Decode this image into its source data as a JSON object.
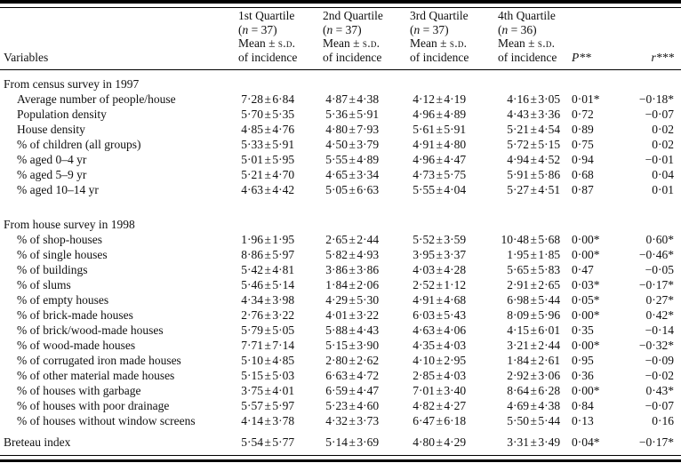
{
  "table": {
    "variables_header": "Variables",
    "plus_minus": "±",
    "mean_label": "Mean ± s.d.",
    "incidence_label": "of incidence",
    "p_header": "P**",
    "r_header": "r***",
    "quartile_columns": [
      {
        "title": "1st Quartile",
        "n": "(n = 37)"
      },
      {
        "title": "2nd Quartile",
        "n": "(n = 37)"
      },
      {
        "title": "3rd Quartile",
        "n": "(n = 37)"
      },
      {
        "title": "4th Quartile",
        "n": "(n = 36)"
      }
    ],
    "sections": [
      {
        "title": "From census survey in 1997",
        "rows": [
          {
            "label": "Average number of people/house",
            "values": [
              [
                "7·28",
                "6·84"
              ],
              [
                "4·87",
                "4·38"
              ],
              [
                "4·12",
                "4·19"
              ],
              [
                "4·16",
                "3·05"
              ]
            ],
            "p": "0·01*",
            "r": "−0·18*"
          },
          {
            "label": "Population density",
            "values": [
              [
                "5·70",
                "5·35"
              ],
              [
                "5·36",
                "5·91"
              ],
              [
                "4·96",
                "4·89"
              ],
              [
                "4·43",
                "3·36"
              ]
            ],
            "p": "0·72",
            "r": "−0·07"
          },
          {
            "label": "House density",
            "values": [
              [
                "4·85",
                "4·76"
              ],
              [
                "4·80",
                "7·93"
              ],
              [
                "5·61",
                "5·91"
              ],
              [
                "5·21",
                "4·54"
              ]
            ],
            "p": "0·89",
            "r": "0·02"
          },
          {
            "label": "% of children (all groups)",
            "values": [
              [
                "5·33",
                "5·91"
              ],
              [
                "4·50",
                "3·79"
              ],
              [
                "4·91",
                "4·80"
              ],
              [
                "5·72",
                "5·15"
              ]
            ],
            "p": "0·75",
            "r": "0·02"
          },
          {
            "label": "% aged 0–4 yr",
            "values": [
              [
                "5·01",
                "5·95"
              ],
              [
                "5·55",
                "4·89"
              ],
              [
                "4·96",
                "4·47"
              ],
              [
                "4·94",
                "4·52"
              ]
            ],
            "p": "0·94",
            "r": "−0·01"
          },
          {
            "label": "% aged 5–9 yr",
            "values": [
              [
                "5·21",
                "4·70"
              ],
              [
                "4·65",
                "3·34"
              ],
              [
                "4·73",
                "5·75"
              ],
              [
                "5·91",
                "5·86"
              ]
            ],
            "p": "0·68",
            "r": "0·04"
          },
          {
            "label": "% aged 10–14 yr",
            "values": [
              [
                "4·63",
                "4·42"
              ],
              [
                "5·05",
                "6·63"
              ],
              [
                "5·55",
                "4·04"
              ],
              [
                "5·27",
                "4·51"
              ]
            ],
            "p": "0·87",
            "r": "0·01"
          }
        ]
      },
      {
        "title": "From house survey in 1998",
        "rows": [
          {
            "label": "% of shop-houses",
            "values": [
              [
                "1·96",
                "1·95"
              ],
              [
                "2·65",
                "2·44"
              ],
              [
                "5·52",
                "3·59"
              ],
              [
                "10·48",
                "5·68"
              ]
            ],
            "p": "0·00*",
            "r": "0·60*"
          },
          {
            "label": "% of single houses",
            "values": [
              [
                "8·86",
                "5·97"
              ],
              [
                "5·82",
                "4·93"
              ],
              [
                "3·95",
                "3·37"
              ],
              [
                "1·95",
                "1·85"
              ]
            ],
            "p": "0·00*",
            "r": "−0·46*"
          },
          {
            "label": "% of buildings",
            "values": [
              [
                "5·42",
                "4·81"
              ],
              [
                "3·86",
                "3·86"
              ],
              [
                "4·03",
                "4·28"
              ],
              [
                "5·65",
                "5·83"
              ]
            ],
            "p": "0·47",
            "r": "−0·05"
          },
          {
            "label": "% of slums",
            "values": [
              [
                "5·46",
                "5·14"
              ],
              [
                "1·84",
                "2·06"
              ],
              [
                "2·52",
                "1·12"
              ],
              [
                "2·91",
                "2·65"
              ]
            ],
            "p": "0·03*",
            "r": "−0·17*"
          },
          {
            "label": "% of empty houses",
            "values": [
              [
                "4·34",
                "3·98"
              ],
              [
                "4·29",
                "5·30"
              ],
              [
                "4·91",
                "4·68"
              ],
              [
                "6·98",
                "5·44"
              ]
            ],
            "p": "0·05*",
            "r": "0·27*"
          },
          {
            "label": "% of brick-made houses",
            "values": [
              [
                "2·76",
                "3·22"
              ],
              [
                "4·01",
                "3·22"
              ],
              [
                "6·03",
                "5·43"
              ],
              [
                "8·09",
                "5·96"
              ]
            ],
            "p": "0·00*",
            "r": "0·42*"
          },
          {
            "label": "% of brick/wood-made houses",
            "values": [
              [
                "5·79",
                "5·05"
              ],
              [
                "5·88",
                "4·43"
              ],
              [
                "4·63",
                "4·06"
              ],
              [
                "4·15",
                "6·01"
              ]
            ],
            "p": "0·35",
            "r": "−0·14"
          },
          {
            "label": "% of wood-made houses",
            "values": [
              [
                "7·71",
                "7·14"
              ],
              [
                "5·15",
                "3·90"
              ],
              [
                "4·35",
                "4·03"
              ],
              [
                "3·21",
                "2·44"
              ]
            ],
            "p": "0·00*",
            "r": "−0·32*"
          },
          {
            "label": "% of corrugated iron made houses",
            "values": [
              [
                "5·10",
                "4·85"
              ],
              [
                "2·80",
                "2·62"
              ],
              [
                "4·10",
                "2·95"
              ],
              [
                "1·84",
                "2·61"
              ]
            ],
            "p": "0·95",
            "r": "−0·09"
          },
          {
            "label": "% of other material made houses",
            "values": [
              [
                "5·15",
                "5·03"
              ],
              [
                "6·63",
                "4·72"
              ],
              [
                "2·85",
                "4·03"
              ],
              [
                "2·92",
                "3·06"
              ]
            ],
            "p": "0·36",
            "r": "−0·02"
          },
          {
            "label": "% of houses with garbage",
            "values": [
              [
                "3·75",
                "4·01"
              ],
              [
                "6·59",
                "4·47"
              ],
              [
                "7·01",
                "3·40"
              ],
              [
                "8·64",
                "6·28"
              ]
            ],
            "p": "0·00*",
            "r": "0·43*"
          },
          {
            "label": "% of houses with poor drainage",
            "values": [
              [
                "5·57",
                "5·97"
              ],
              [
                "5·23",
                "4·60"
              ],
              [
                "4·82",
                "4·27"
              ],
              [
                "4·69",
                "4·38"
              ]
            ],
            "p": "0·84",
            "r": "−0·07"
          },
          {
            "label": "% of houses without window screens",
            "values": [
              [
                "4·14",
                "3·78"
              ],
              [
                "4·32",
                "3·73"
              ],
              [
                "6·47",
                "6·18"
              ],
              [
                "5·50",
                "5·44"
              ]
            ],
            "p": "0·13",
            "r": "0·16"
          }
        ]
      },
      {
        "title": null,
        "rows": [
          {
            "label": "Breteau index",
            "values": [
              [
                "5·54",
                "5·77"
              ],
              [
                "5·14",
                "3·69"
              ],
              [
                "4·80",
                "4·29"
              ],
              [
                "3·31",
                "3·49"
              ]
            ],
            "p": "0·04*",
            "r": "−0·17*"
          }
        ]
      }
    ]
  }
}
